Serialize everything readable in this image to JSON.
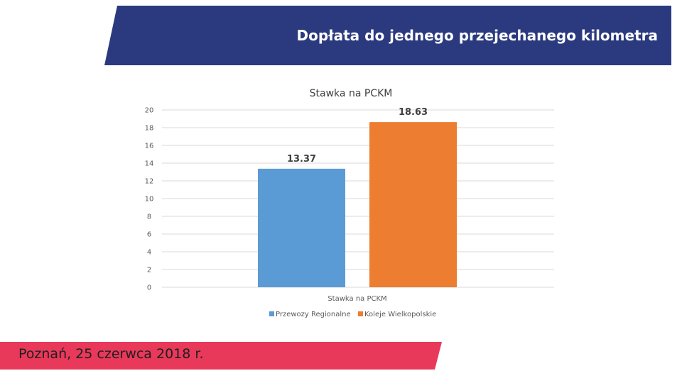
{
  "header": {
    "title": "Dopłata do jednego przejechanego kilometra"
  },
  "footer": {
    "text": "Poznań, 25 czerwca 2018 r."
  },
  "colors": {
    "header_band": "#2B3A7F",
    "footer_band": "#E8395A",
    "series_1": "#5B9BD5",
    "series_2": "#ED7D31",
    "grid": "#D9D9D9"
  },
  "chart_data": {
    "type": "bar",
    "title": "Stawka na PCKM",
    "categories": [
      "Stawka na PCKM"
    ],
    "series": [
      {
        "name": "Przewozy Regionalne",
        "values": [
          13.37
        ],
        "label": "13.37"
      },
      {
        "name": "Koleje Wielkopolskie",
        "values": [
          18.63
        ],
        "label": "18.63"
      }
    ],
    "ylim": [
      0,
      20
    ],
    "yticks": [
      "0",
      "2",
      "4",
      "6",
      "8",
      "10",
      "12",
      "14",
      "16",
      "18",
      "20"
    ],
    "grid": true,
    "legend": "bottom"
  }
}
